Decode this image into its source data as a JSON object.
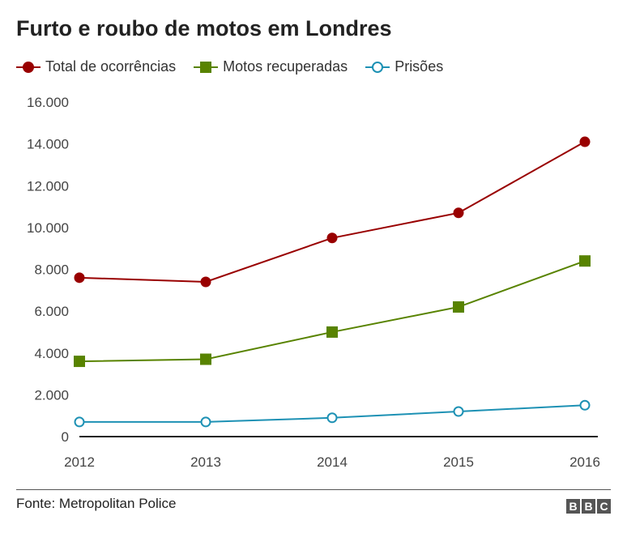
{
  "chart_data": {
    "type": "line",
    "title": "Furto e roubo de motos em Londres",
    "categories": [
      "2012",
      "2013",
      "2014",
      "2015",
      "2016"
    ],
    "ylim": [
      0,
      16000
    ],
    "yticks": [
      "0",
      "2.000",
      "4.000",
      "6.000",
      "8.000",
      "10.000",
      "12.000",
      "14.000",
      "16.000"
    ],
    "ytick_values": [
      0,
      2000,
      4000,
      6000,
      8000,
      10000,
      12000,
      14000,
      16000
    ],
    "grid": false,
    "legend": "top-left",
    "series": [
      {
        "name": "Total de ocorrências",
        "values": [
          7600,
          7400,
          9500,
          10700,
          14100
        ],
        "color": "#990000",
        "marker": "circle"
      },
      {
        "name": "Motos recuperadas",
        "values": [
          3600,
          3700,
          5000,
          6200,
          8400
        ],
        "color": "#588300",
        "marker": "square"
      },
      {
        "name": "Prisões",
        "values": [
          700,
          700,
          900,
          1200,
          1500
        ],
        "color": "#1d91b4",
        "marker": "open-circle"
      }
    ]
  },
  "source": "Fonte: Metropolitan Police",
  "logo": [
    "B",
    "B",
    "C"
  ]
}
